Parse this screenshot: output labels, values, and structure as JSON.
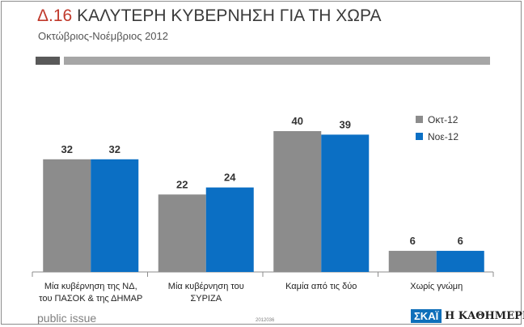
{
  "header": {
    "number": "Δ.16",
    "title": "ΚΑΛΥΤΕΡΗ ΚΥΒΕΡΝΗΣΗ ΓΙΑ ΤΗ ΧΩΡΑ",
    "subtitle": "Οκτώβριος-Νοέμβριος 2012"
  },
  "footer": {
    "brand": "public issue",
    "code": "2012036",
    "logo_skai": "ΣΚΑΪ",
    "logo_kathimerini": "Η ΚΑΘΗΜΕΡΙΝΗ"
  },
  "colors": {
    "series1": "#8c8c8c",
    "series2": "#0b6fc4",
    "accent": "#c0392b"
  },
  "chart_data": {
    "type": "bar",
    "title": "ΚΑΛΥΤΕΡΗ ΚΥΒΕΡΝΗΣΗ ΓΙΑ ΤΗ ΧΩΡΑ",
    "subtitle": "Οκτώβριος-Νοέμβριος 2012",
    "categories": [
      [
        "Μία κυβέρνηση της ΝΔ,",
        "του ΠΑΣΟΚ & της ΔΗΜΑΡ"
      ],
      [
        "Μία κυβέρνηση του",
        "ΣΥΡΙΖΑ"
      ],
      [
        "Καμία από τις δύο"
      ],
      [
        "Χωρίς γνώμη"
      ]
    ],
    "series": [
      {
        "name": "Οκτ-12",
        "values": [
          32,
          22,
          40,
          6
        ]
      },
      {
        "name": "Νοε-12",
        "values": [
          32,
          24,
          39,
          6
        ]
      }
    ],
    "ylim": [
      0,
      50
    ],
    "grid": false,
    "legend": "top-right",
    "data_labels": true
  }
}
